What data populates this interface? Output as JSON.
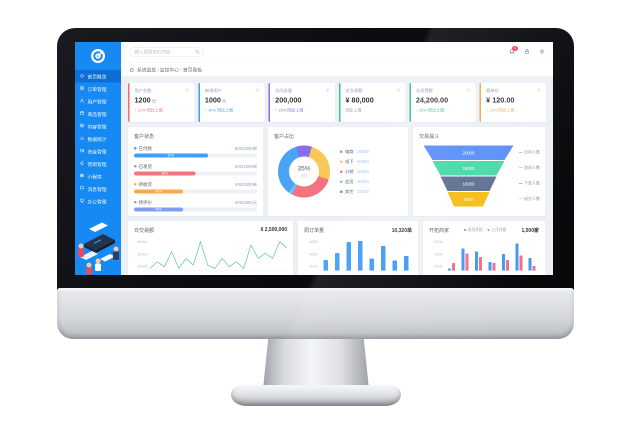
{
  "theme": {
    "sidebar_bg": "#1789f2",
    "sidebar_active_bg": "#0d6fd6",
    "content_bg": "#edf0f5",
    "bezel": "#0b0c10"
  },
  "header": {
    "search_placeholder": "输入要搜索的内容",
    "badge_count": "4",
    "icons": [
      "bell-icon",
      "lock-icon",
      "gear-icon"
    ]
  },
  "breadcrumb": {
    "items": [
      "系统监控",
      "监控中心",
      "首页看板"
    ]
  },
  "sidebar": {
    "logo_icon": "target-logo-icon",
    "items": [
      {
        "icon": "home",
        "label": "首页概览",
        "active": true
      },
      {
        "icon": "doc",
        "label": "订单管理",
        "active": false
      },
      {
        "icon": "user",
        "label": "用户管理",
        "active": false
      },
      {
        "icon": "calendar",
        "label": "商品管理",
        "active": false
      },
      {
        "icon": "image",
        "label": "内容管理",
        "active": false
      },
      {
        "icon": "chart",
        "label": "数据统计",
        "active": false
      },
      {
        "icon": "wallet",
        "label": "资金管理",
        "active": false
      },
      {
        "icon": "megaphone",
        "label": "营销管理",
        "active": false
      },
      {
        "icon": "grid",
        "label": "小程序",
        "active": false
      },
      {
        "icon": "chat",
        "label": "消息管理",
        "active": false
      },
      {
        "icon": "monitor",
        "label": "办公管理",
        "active": false
      }
    ]
  },
  "stat_cards": [
    {
      "title": "用户总数",
      "value": "1200",
      "unit": "元",
      "sub": "↑ 12% 同比上周",
      "accent": "#f5687a",
      "sub_color": "#f5687a"
    },
    {
      "title": "新增用户",
      "value": "1000",
      "unit": "元",
      "sub": "↑ 10% 同比上周",
      "accent": "#3ea1f5",
      "sub_color": "#3ea1f5"
    },
    {
      "title": "访问总量",
      "value": "200,000",
      "unit": "",
      "sub": "↑ 15% 同比上周",
      "accent": "#8a6cf5",
      "sub_color": "#8a6cf5"
    },
    {
      "title": "总交易额",
      "value": "¥ 80,000",
      "unit": "",
      "sub": "同比上周",
      "accent": "#35c08e",
      "sub_color": "#9aa0ab"
    },
    {
      "title": "总消费额",
      "value": "24,200.00",
      "unit": "",
      "sub": "↓ 22% 同比上周",
      "accent": "#35c08e",
      "sub_color": "#35c08e"
    },
    {
      "title": "客单价",
      "value": "¥ 120.00",
      "unit": "",
      "sub": "↑ 10% 同比上周",
      "accent": "#f6a94a",
      "sub_color": "#f6a94a"
    }
  ],
  "customer_status": {
    "title": "客户状态",
    "rows": [
      {
        "label": "已付款",
        "value": "600/1000单",
        "percent": 60,
        "color": "#409eff"
      },
      {
        "label": "已发货",
        "value": "500/1000单",
        "percent": 50,
        "color": "#f5737f"
      },
      {
        "label": "待收货",
        "value": "400/1000单",
        "percent": 40,
        "color": "#f9a94c"
      },
      {
        "label": "待评价",
        "value": "400/1000元",
        "percent": 40,
        "color": "#7f9bf2"
      }
    ]
  },
  "customer_share": {
    "title": "客户占比",
    "center_value": "35%",
    "center_label": "占比",
    "legend": [
      {
        "label": "电商",
        "value": "10000",
        "color": "#4ba3f5"
      },
      {
        "label": "线下",
        "value": "10000",
        "color": "#fac858"
      },
      {
        "label": "分销",
        "value": "10000",
        "color": "#f5737f"
      },
      {
        "label": "会员",
        "value": "10000",
        "color": "#54cdf9"
      },
      {
        "label": "其它",
        "value": "10000",
        "color": "#8b6cf0"
      }
    ],
    "donut_order": [
      {
        "color": "#8b6cf0",
        "share": 10
      },
      {
        "color": "#fac858",
        "share": 25
      },
      {
        "color": "#f5737f",
        "share": 28
      },
      {
        "color": "#54cdf9",
        "share": 2
      },
      {
        "color": "#4ba3f5",
        "share": 35
      }
    ],
    "start_angle_deg": -18
  },
  "funnel": {
    "title": "交易漏斗",
    "levels": [
      {
        "value": "20000",
        "label": "访问人数",
        "color": "#5b8ff9",
        "top_w": 180,
        "bot_w": 144
      },
      {
        "value": "15000",
        "label": "咨询人数",
        "color": "#49d8a6",
        "top_w": 144,
        "bot_w": 112
      },
      {
        "value": "10000",
        "label": "下单人数",
        "color": "#5d7092",
        "top_w": 112,
        "bot_w": 84
      },
      {
        "value": "5000",
        "label": "成交人数",
        "color": "#f6bd16",
        "top_w": 84,
        "bot_w": 58
      }
    ]
  },
  "daily_trade": {
    "title": "日交易额",
    "amount": "¥ 2,500,000",
    "y_labels": [
      "40000",
      "30000",
      "20000"
    ],
    "type": "line",
    "color": "#5fc98b",
    "values": [
      21,
      23,
      21.5,
      26,
      21,
      24,
      22,
      29,
      22,
      21,
      24,
      21.5,
      23,
      21,
      28,
      24,
      25.5,
      24,
      29,
      27
    ]
  },
  "weekly_orders": {
    "title": "周订单量",
    "total": "10,320单",
    "y_labels": [
      "9000",
      "6000",
      "3000"
    ],
    "type": "bar",
    "color": "#3e9bf4",
    "max": 9000,
    "values": [
      3200,
      5200,
      8600,
      8800,
      3600,
      7400,
      3000,
      4400
    ]
  },
  "merchants": {
    "title": "开拓商家",
    "total": "1,500家",
    "y_labels": [
      "6000",
      "4000",
      "2000"
    ],
    "type": "grouped-bar",
    "max": 6000,
    "series": [
      {
        "name": "本月开拓",
        "color": "#3e9bf4",
        "values": [
          400,
          4600,
          3900,
          1800,
          3400,
          5600,
          2600
        ]
      },
      {
        "name": "上月开拓",
        "color": "#f56c8a",
        "values": [
          1600,
          3500,
          2800,
          1500,
          2200,
          3100,
          900
        ]
      }
    ]
  }
}
